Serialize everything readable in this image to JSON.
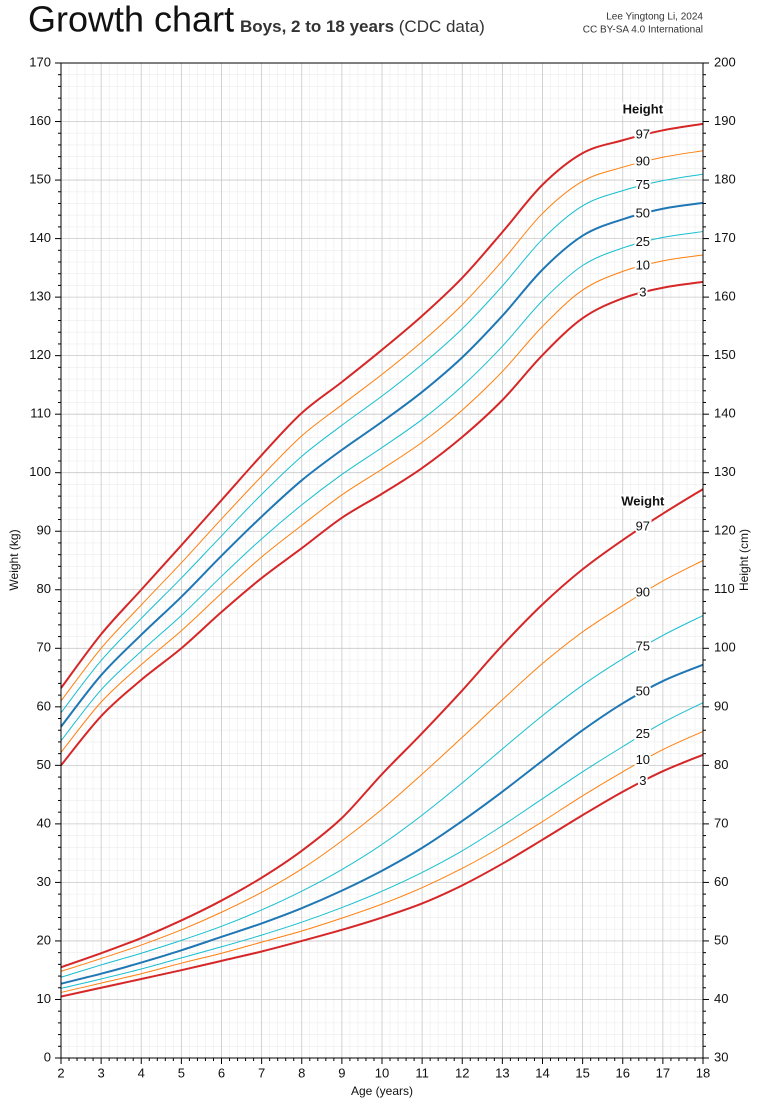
{
  "chart_data": {
    "type": "line",
    "title": "Growth chart",
    "subtitle": "Boys, 2 to 18 years",
    "subtitle_note": "(CDC data)",
    "credit": [
      "Lee Yingtong Li, 2024",
      "CC BY-SA 4.0 International"
    ],
    "x_label": "Age (years)",
    "y_label": "Weight (kg)",
    "y2_label": "Height (cm)",
    "x": [
      2,
      3,
      4,
      5,
      6,
      7,
      8,
      9,
      10,
      11,
      12,
      13,
      14,
      15,
      16,
      17,
      18
    ],
    "xlim": [
      2,
      18
    ],
    "xticks": [
      2,
      3,
      4,
      5,
      6,
      7,
      8,
      9,
      10,
      11,
      12,
      13,
      14,
      15,
      16,
      17,
      18
    ],
    "ylim": [
      0,
      170
    ],
    "yticks": [
      0,
      10,
      20,
      30,
      40,
      50,
      60,
      70,
      80,
      90,
      100,
      110,
      120,
      130,
      140,
      150,
      160,
      170
    ],
    "y2lim": [
      30,
      200
    ],
    "y2ticks": [
      30,
      40,
      50,
      60,
      70,
      80,
      90,
      100,
      110,
      120,
      130,
      140,
      150,
      160,
      170,
      180,
      190,
      200
    ],
    "grid": true,
    "minor_divisions": 5,
    "groups": [
      {
        "name": "Height",
        "color": "#d62728"
      },
      {
        "name": "Weight",
        "color": "#d62728"
      }
    ],
    "series": [
      {
        "name": "97",
        "group": "Height",
        "axis": "y2",
        "color": "#d62728",
        "style": "bold",
        "values": [
          93.2,
          102.4,
          110,
          117.6,
          125.3,
          133,
          140.2,
          145.5,
          151,
          156.8,
          163.3,
          171.1,
          179.2,
          184.6,
          186.8,
          188.5,
          189.6
        ]
      },
      {
        "name": "90",
        "group": "Height",
        "axis": "y2",
        "color": "#ff7f0e",
        "style": "thin",
        "values": [
          91,
          100,
          107.4,
          114.6,
          122.1,
          129.4,
          136.3,
          141.6,
          146.8,
          152.4,
          158.7,
          166.2,
          174.3,
          179.8,
          182.2,
          183.9,
          185
        ]
      },
      {
        "name": "75",
        "group": "Height",
        "axis": "y2",
        "color": "#17becf",
        "style": "thin",
        "values": [
          89,
          97.9,
          105.1,
          112,
          119.2,
          126.3,
          132.8,
          138.1,
          143.1,
          148.5,
          154.6,
          161.9,
          169.9,
          175.6,
          178.2,
          179.9,
          181
        ]
      },
      {
        "name": "50",
        "group": "Height",
        "axis": "y2",
        "color": "#1f77b4",
        "style": "bold",
        "values": [
          86.6,
          95.4,
          102.3,
          108.8,
          115.8,
          122.5,
          128.7,
          133.9,
          138.7,
          143.8,
          149.7,
          156.8,
          164.7,
          170.5,
          173.3,
          175.1,
          176.1
        ]
      },
      {
        "name": "25",
        "group": "Height",
        "axis": "y2",
        "color": "#17becf",
        "style": "thin",
        "values": [
          84.2,
          92.9,
          99.5,
          105.6,
          112.3,
          118.7,
          124.5,
          129.7,
          134.3,
          139.1,
          144.8,
          151.6,
          159.4,
          165.4,
          168.4,
          170.2,
          171.2
        ]
      },
      {
        "name": "10",
        "group": "Height",
        "axis": "y2",
        "color": "#ff7f0e",
        "style": "thin",
        "values": [
          82.2,
          90.8,
          97.2,
          103,
          109.4,
          115.6,
          121,
          126.2,
          130.6,
          135.2,
          140.7,
          147.3,
          155,
          161.2,
          164.4,
          166.2,
          167.2
        ]
      },
      {
        "name": "3",
        "group": "Height",
        "axis": "y2",
        "color": "#d62728",
        "style": "bold",
        "values": [
          80,
          88.4,
          94.6,
          100,
          106.2,
          112,
          117.1,
          122.3,
          126.4,
          130.8,
          136.1,
          142.4,
          150.1,
          156.4,
          159.8,
          161.6,
          162.6
        ]
      },
      {
        "name": "97",
        "group": "Weight",
        "axis": "y",
        "color": "#d62728",
        "style": "bold",
        "values": [
          15.5,
          17.9,
          20.5,
          23.5,
          26.9,
          30.8,
          35.4,
          41,
          48.5,
          55.5,
          62.8,
          70.5,
          77.5,
          83.5,
          88.5,
          93,
          97.2
        ]
      },
      {
        "name": "90",
        "group": "Weight",
        "axis": "y",
        "color": "#ff7f0e",
        "style": "thin",
        "values": [
          14.8,
          17,
          19.3,
          21.9,
          24.9,
          28.3,
          32.3,
          37.1,
          42.5,
          48.5,
          54.8,
          61.2,
          67.4,
          72.8,
          77.3,
          81.5,
          85
        ]
      },
      {
        "name": "75",
        "group": "Weight",
        "axis": "y",
        "color": "#17becf",
        "style": "thin",
        "values": [
          13.8,
          15.9,
          17.9,
          20.1,
          22.5,
          25.3,
          28.5,
          32.2,
          36.5,
          41.5,
          47,
          52.8,
          58.5,
          63.7,
          68.2,
          72.2,
          75.6
        ]
      },
      {
        "name": "50",
        "group": "Weight",
        "axis": "y",
        "color": "#1f77b4",
        "style": "bold",
        "values": [
          12.7,
          14.4,
          16.3,
          18.4,
          20.7,
          23,
          25.6,
          28.6,
          32,
          35.9,
          40.5,
          45.5,
          50.8,
          56,
          60.6,
          64.4,
          67.2
        ]
      },
      {
        "name": "25",
        "group": "Weight",
        "axis": "y",
        "color": "#17becf",
        "style": "thin",
        "values": [
          11.9,
          13.5,
          15.2,
          17.1,
          19,
          21,
          23.2,
          25.7,
          28.5,
          31.7,
          35.4,
          39.7,
          44.3,
          48.9,
          53.2,
          57.3,
          60.7
        ]
      },
      {
        "name": "10",
        "group": "Weight",
        "axis": "y",
        "color": "#ff7f0e",
        "style": "thin",
        "values": [
          11.2,
          12.8,
          14.4,
          16.2,
          17.9,
          19.8,
          21.7,
          23.9,
          26.3,
          29.1,
          32.4,
          36.2,
          40.4,
          44.8,
          48.9,
          52.7,
          55.8
        ]
      },
      {
        "name": "3",
        "group": "Weight",
        "axis": "y",
        "color": "#d62728",
        "style": "bold",
        "values": [
          10.5,
          12,
          13.5,
          15,
          16.6,
          18.2,
          20,
          21.9,
          24,
          26.4,
          29.5,
          33.2,
          37.3,
          41.5,
          45.5,
          49,
          51.8
        ]
      }
    ]
  }
}
